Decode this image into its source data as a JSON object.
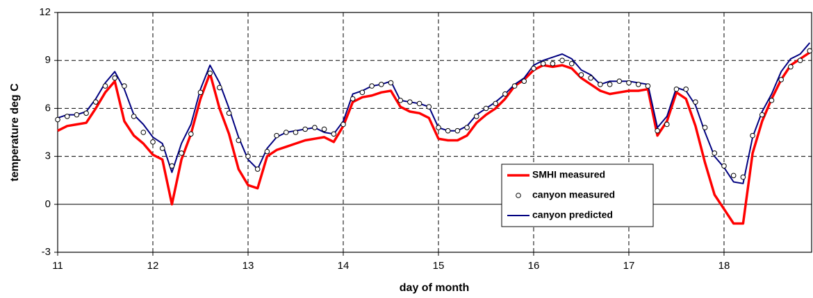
{
  "chart_data": {
    "type": "line",
    "xlabel": "day of month",
    "ylabel": "temperature deg C",
    "xlim": [
      11,
      18.92
    ],
    "xticks": [
      11,
      12,
      13,
      14,
      15,
      16,
      17,
      18
    ],
    "ylim": [
      -3,
      12
    ],
    "yticks": [
      -3,
      0,
      3,
      6,
      9,
      12
    ],
    "grid": true,
    "x": [
      11.0,
      11.1,
      11.2,
      11.3,
      11.4,
      11.5,
      11.6,
      11.7,
      11.8,
      11.9,
      12.0,
      12.1,
      12.2,
      12.3,
      12.4,
      12.5,
      12.6,
      12.7,
      12.8,
      12.9,
      13.0,
      13.1,
      13.2,
      13.3,
      13.4,
      13.5,
      13.6,
      13.7,
      13.8,
      13.9,
      14.0,
      14.1,
      14.2,
      14.3,
      14.4,
      14.5,
      14.6,
      14.7,
      14.8,
      14.9,
      15.0,
      15.1,
      15.2,
      15.3,
      15.4,
      15.5,
      15.6,
      15.7,
      15.8,
      15.9,
      16.0,
      16.1,
      16.2,
      16.3,
      16.4,
      16.5,
      16.6,
      16.7,
      16.8,
      16.9,
      17.0,
      17.1,
      17.2,
      17.3,
      17.4,
      17.5,
      17.6,
      17.7,
      17.8,
      17.9,
      18.0,
      18.1,
      18.2,
      18.3,
      18.4,
      18.5,
      18.6,
      18.7,
      18.8,
      18.9
    ],
    "series": [
      {
        "name": "SMHI measured",
        "color": "#ff0000",
        "mode": "line",
        "values": [
          4.6,
          4.9,
          5.0,
          5.1,
          6.0,
          7.0,
          7.7,
          5.2,
          4.3,
          3.8,
          3.1,
          2.8,
          0.0,
          2.8,
          4.4,
          6.6,
          8.2,
          6.0,
          4.4,
          2.2,
          1.2,
          1.0,
          3.0,
          3.4,
          3.6,
          3.8,
          4.0,
          4.1,
          4.2,
          3.9,
          4.9,
          6.4,
          6.7,
          6.8,
          7.0,
          7.1,
          6.1,
          5.8,
          5.7,
          5.4,
          4.1,
          4.0,
          4.0,
          4.3,
          5.1,
          5.6,
          6.0,
          6.6,
          7.4,
          7.8,
          8.4,
          8.7,
          8.6,
          8.7,
          8.5,
          7.9,
          7.5,
          7.1,
          6.9,
          7.0,
          7.1,
          7.1,
          7.2,
          4.3,
          5.2,
          7.0,
          6.6,
          4.9,
          2.6,
          0.6,
          -0.3,
          -1.2,
          -1.2,
          3.2,
          5.2,
          6.6,
          7.8,
          8.7,
          9.1,
          9.5
        ]
      },
      {
        "name": "canyon measured",
        "color": "#000000",
        "mode": "markers",
        "values": [
          5.3,
          5.5,
          5.6,
          5.7,
          6.4,
          7.4,
          7.9,
          7.4,
          5.5,
          4.5,
          3.9,
          3.5,
          2.4,
          3.2,
          4.4,
          7.0,
          8.2,
          7.3,
          5.7,
          4.0,
          3.0,
          2.2,
          3.3,
          4.3,
          4.5,
          4.5,
          4.7,
          4.8,
          4.7,
          4.4,
          5.0,
          6.6,
          7.0,
          7.4,
          7.5,
          7.6,
          6.5,
          6.4,
          6.3,
          6.1,
          4.8,
          4.6,
          4.6,
          4.8,
          5.5,
          6.0,
          6.3,
          6.9,
          7.4,
          7.7,
          8.5,
          8.8,
          8.8,
          9.0,
          8.8,
          8.1,
          7.9,
          7.5,
          7.5,
          7.7,
          7.6,
          7.5,
          7.4,
          4.6,
          5.0,
          7.2,
          7.2,
          6.4,
          4.8,
          3.2,
          2.4,
          1.8,
          1.7,
          4.3,
          5.6,
          6.5,
          7.8,
          8.6,
          9.0,
          9.6
        ]
      },
      {
        "name": "canyon predicted",
        "color": "#000080",
        "mode": "line",
        "values": [
          5.4,
          5.6,
          5.6,
          5.8,
          6.6,
          7.6,
          8.3,
          7.2,
          5.6,
          5.0,
          4.2,
          3.8,
          2.0,
          3.8,
          5.0,
          7.2,
          8.7,
          7.6,
          6.0,
          4.2,
          2.8,
          2.2,
          3.5,
          4.2,
          4.5,
          4.6,
          4.7,
          4.8,
          4.5,
          4.4,
          5.2,
          6.9,
          7.1,
          7.4,
          7.5,
          7.7,
          6.5,
          6.4,
          6.3,
          6.1,
          4.8,
          4.6,
          4.6,
          4.9,
          5.6,
          6.0,
          6.4,
          6.9,
          7.5,
          7.9,
          8.7,
          9.0,
          9.2,
          9.4,
          9.1,
          8.4,
          8.1,
          7.5,
          7.7,
          7.7,
          7.7,
          7.6,
          7.5,
          4.8,
          5.5,
          7.3,
          7.1,
          6.2,
          4.5,
          3.0,
          2.3,
          1.4,
          1.3,
          4.2,
          5.8,
          6.9,
          8.3,
          9.1,
          9.4,
          10.1
        ]
      }
    ]
  }
}
